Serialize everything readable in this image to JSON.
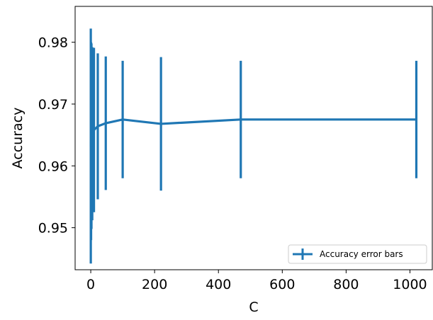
{
  "chart_data": {
    "type": "line",
    "title": "",
    "xlabel": "C",
    "ylabel": "Accuracy",
    "xlim": [
      -49,
      1070
    ],
    "ylim": [
      0.9432,
      0.9858
    ],
    "xticks": [
      0,
      200,
      400,
      600,
      800,
      1000
    ],
    "yticks": [
      0.95,
      0.96,
      0.97,
      0.98
    ],
    "xtick_labels": [
      "0",
      "200",
      "400",
      "600",
      "800",
      "1000"
    ],
    "ytick_labels": [
      "0.95",
      "0.96",
      "0.97",
      "0.98"
    ],
    "grid": false,
    "legend": {
      "position": "lower-right",
      "entries": [
        "Accuracy error bars"
      ]
    },
    "series": [
      {
        "name": "Accuracy error bars",
        "color": "#1f77b4",
        "x": [
          0.1,
          1,
          2.2,
          4.7,
          10,
          22,
          47,
          100,
          220,
          470,
          1020
        ],
        "y": [
          0.9632,
          0.964,
          0.9648,
          0.9652,
          0.9658,
          0.9664,
          0.9669,
          0.9675,
          0.9668,
          0.9675,
          0.9675
        ],
        "yerr": [
          0.019,
          0.016,
          0.015,
          0.014,
          0.0133,
          0.0118,
          0.0108,
          0.0095,
          0.0108,
          0.0095,
          0.0095
        ]
      }
    ]
  }
}
